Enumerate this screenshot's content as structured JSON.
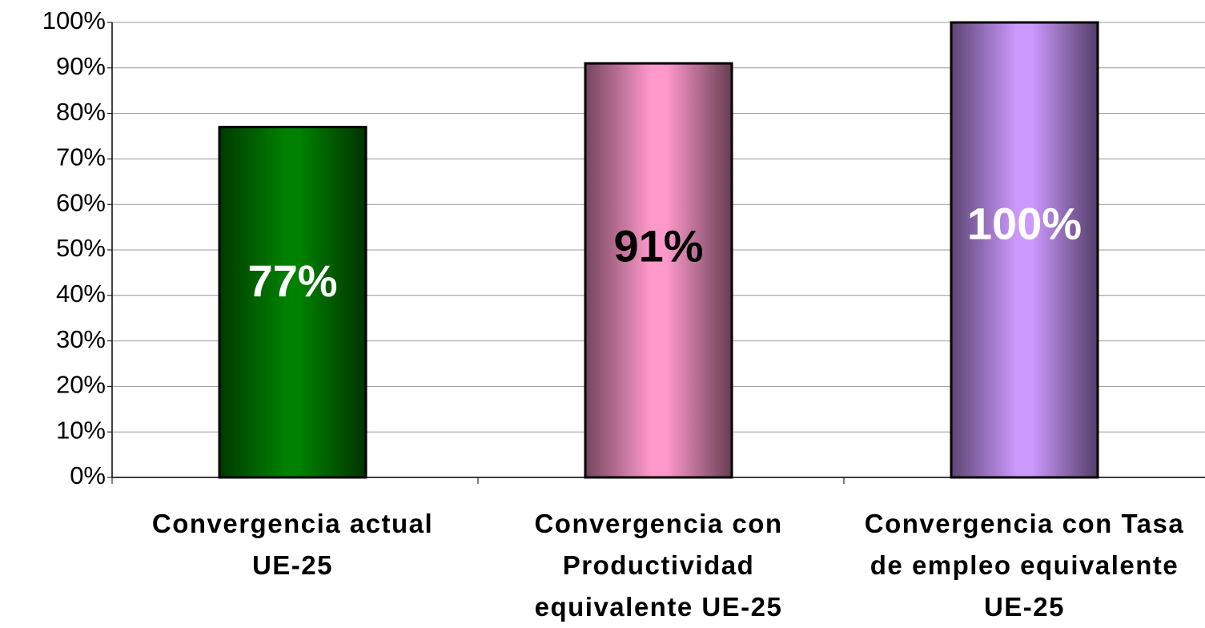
{
  "chart_data": {
    "type": "bar",
    "categories": [
      "Convergencia actual UE-25",
      "Convergencia con Productividad equivalente UE-25",
      "Convergencia con Tasa de empleo equivalente UE-25"
    ],
    "values": [
      77,
      91,
      100
    ],
    "value_labels": [
      "77%",
      "91%",
      "100%"
    ],
    "colors": [
      "#008000",
      "#ff99cc",
      "#cc99ff"
    ],
    "label_colors": [
      "#ffffff",
      "#000000",
      "#ffffff"
    ],
    "ylim": [
      0,
      100
    ],
    "yticks": [
      {
        "value": 0,
        "label": "0%"
      },
      {
        "value": 10,
        "label": "10%"
      },
      {
        "value": 20,
        "label": "20%"
      },
      {
        "value": 30,
        "label": "30%"
      },
      {
        "value": 40,
        "label": "40%"
      },
      {
        "value": 50,
        "label": "50%"
      },
      {
        "value": 60,
        "label": "60%"
      },
      {
        "value": 70,
        "label": "70%"
      },
      {
        "value": 80,
        "label": "80%"
      },
      {
        "value": 90,
        "label": "90%"
      },
      {
        "value": 100,
        "label": "100%"
      }
    ],
    "grid": true
  }
}
